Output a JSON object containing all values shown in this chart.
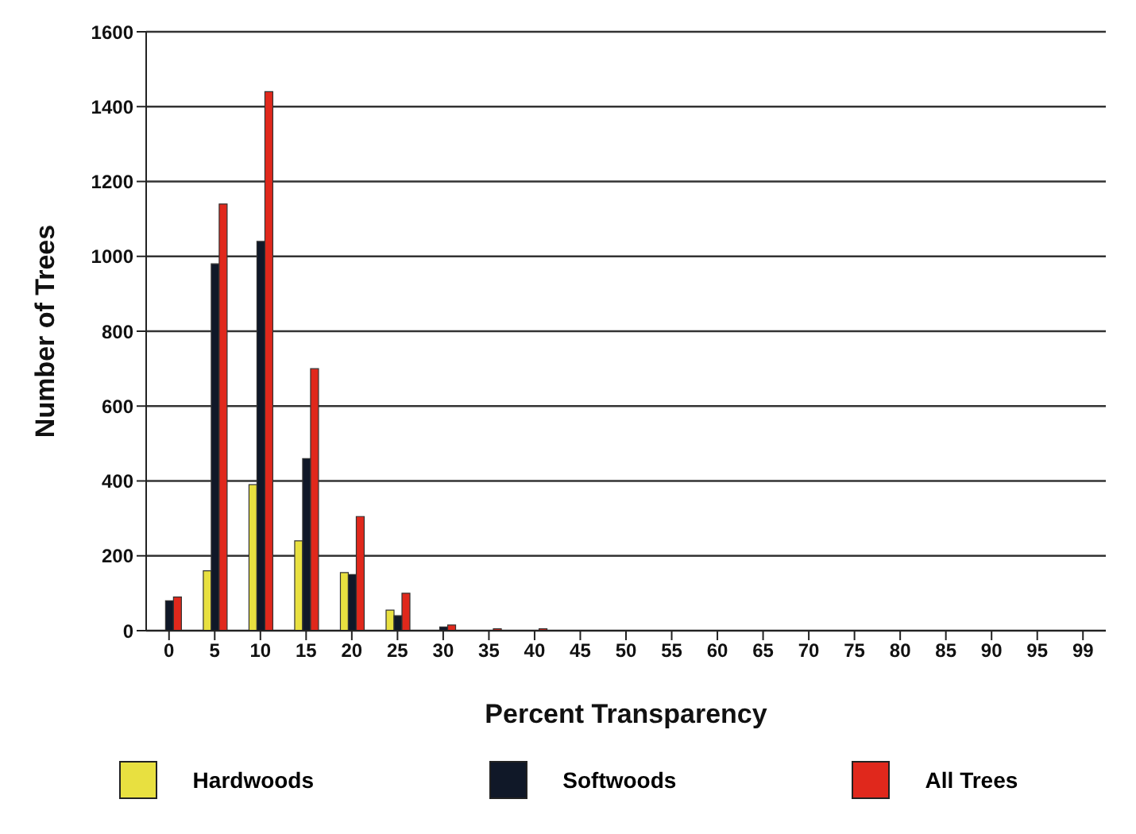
{
  "chart_data": {
    "type": "bar",
    "xlabel": "Percent Transparency",
    "ylabel": "Number of Trees",
    "categories": [
      "0",
      "5",
      "10",
      "15",
      "20",
      "25",
      "30",
      "35",
      "40",
      "45",
      "50",
      "55",
      "60",
      "65",
      "70",
      "75",
      "80",
      "85",
      "90",
      "95",
      "99"
    ],
    "series": [
      {
        "name": "Hardwoods",
        "color": "#e8e040",
        "values": [
          0,
          160,
          390,
          240,
          155,
          55,
          0,
          0,
          0,
          0,
          0,
          0,
          0,
          0,
          0,
          0,
          0,
          0,
          0,
          0,
          0
        ]
      },
      {
        "name": "Softwoods",
        "color": "#101828",
        "values": [
          80,
          980,
          1040,
          460,
          150,
          40,
          10,
          null,
          null,
          0,
          0,
          0,
          0,
          0,
          0,
          0,
          0,
          0,
          0,
          0,
          0
        ]
      },
      {
        "name": "All Trees",
        "color": "#e0281c",
        "values": [
          90,
          1140,
          1440,
          700,
          305,
          100,
          15,
          5,
          5,
          0,
          0,
          0,
          0,
          0,
          0,
          0,
          0,
          0,
          0,
          0,
          0
        ]
      }
    ],
    "ylim": [
      0,
      1600
    ],
    "yticks": [
      0,
      200,
      400,
      600,
      800,
      1000,
      1200,
      1400,
      1600
    ],
    "grid": "y",
    "legend": "bottom"
  }
}
